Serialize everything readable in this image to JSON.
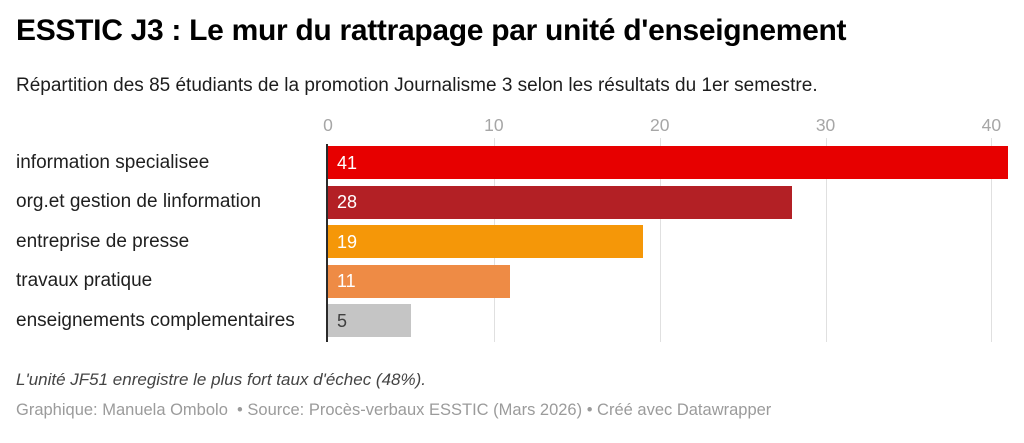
{
  "header": {
    "title": "ESSTIC J3 : Le mur du rattrapage par unité d'enseignement",
    "subtitle": "Répartition des 85 étudiants de la promotion Journalisme 3 selon les résultats du 1er semestre."
  },
  "chart_data": {
    "type": "bar",
    "orientation": "horizontal",
    "title": "ESSTIC J3 : Le mur du rattrapage par unité d'enseignement",
    "subtitle": "Répartition des 85 étudiants de la promotion Journalisme 3 selon les résultats du 1er semestre.",
    "categories": [
      "information specialisee",
      "org.et gestion de linformation",
      "entreprise de presse",
      "travaux pratique",
      "enseignements complementaires"
    ],
    "values": [
      41,
      28,
      19,
      11,
      5
    ],
    "bar_colors": [
      "#e70000",
      "#b32025",
      "#f59708",
      "#ee8b45",
      "#c5c5c5"
    ],
    "value_label_colors": [
      "#ffffff",
      "#ffffff",
      "#ffffff",
      "#ffffff",
      "#404040"
    ],
    "xlim": [
      0,
      41
    ],
    "ticks": [
      0,
      10,
      20,
      30,
      40
    ],
    "grid": true,
    "value_label_position": "inside-start",
    "colors": {
      "gridline": "#e0e0e0",
      "baseline": "#2a2a2a",
      "tick_label": "#a6a6a6"
    }
  },
  "footer": {
    "note": "L'unité JF51 enregistre le plus fort taux d'échec (48%).",
    "byline": "Graphique: Manuela Ombolo  • Source: Procès-verbaux ESSTIC (Mars 2026) • Créé avec Datawrapper"
  }
}
